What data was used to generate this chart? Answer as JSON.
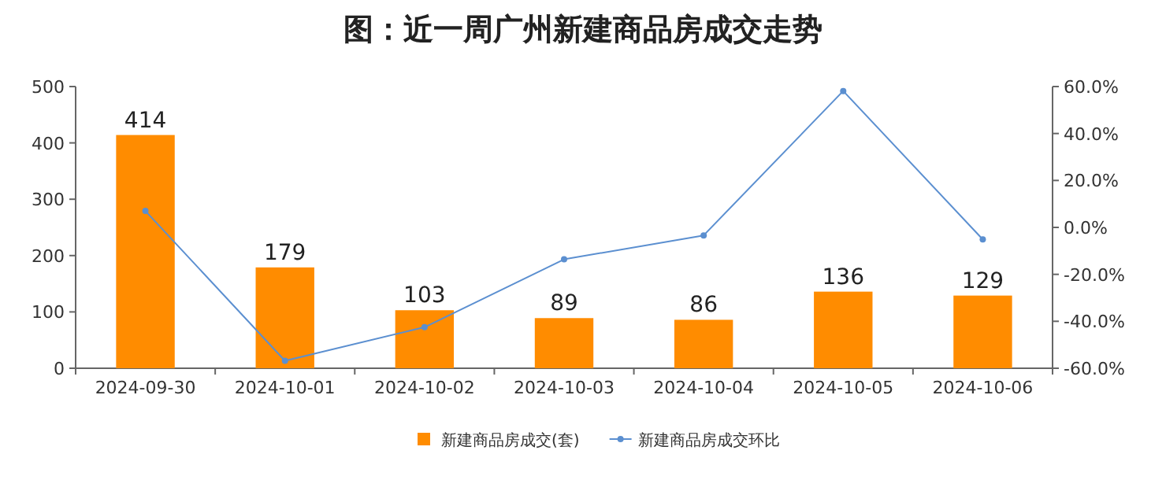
{
  "chart_data": {
    "type": "bar",
    "title": "图：近一周广州新建商品房成交走势",
    "categories": [
      "2024-09-30",
      "2024-10-01",
      "2024-10-02",
      "2024-10-03",
      "2024-10-04",
      "2024-10-05",
      "2024-10-06"
    ],
    "series": [
      {
        "name": "新建商品房成交(套)",
        "color": "#ff8c00",
        "values": [
          414,
          179,
          103,
          89,
          86,
          136,
          129
        ],
        "value_labels": [
          "414",
          "179",
          "103",
          "89",
          "86",
          "136",
          "129"
        ]
      },
      {
        "name": "新建商品房成交环比",
        "type": "line",
        "axis": "y2",
        "color": "#5b8fd0",
        "marker": "circle",
        "values": [
          7.0,
          -56.8,
          -42.5,
          -13.6,
          -3.4,
          58.1,
          -5.1
        ]
      }
    ],
    "ylim": [
      0,
      500
    ],
    "yticks": [
      0,
      100,
      200,
      300,
      400,
      500
    ],
    "y2lim": [
      -60,
      60
    ],
    "y2ticks": [
      {
        "value": -60,
        "label": "-60.0%"
      },
      {
        "value": -40,
        "label": "-40.0%"
      },
      {
        "value": -20,
        "label": "-20.0%"
      },
      {
        "value": 0,
        "label": "0.0%"
      },
      {
        "value": 20,
        "label": "20.0%"
      },
      {
        "value": 40,
        "label": "40.0%"
      },
      {
        "value": 60,
        "label": "60.0%"
      }
    ],
    "legend": "bottom"
  }
}
